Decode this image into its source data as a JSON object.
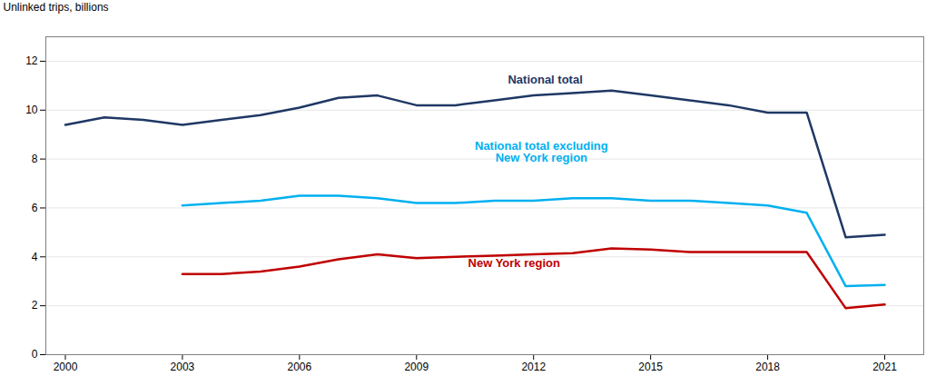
{
  "chart_data": {
    "type": "line",
    "ylabel": "Unlinked trips, billions",
    "x": [
      2000,
      2001,
      2002,
      2003,
      2004,
      2005,
      2006,
      2007,
      2008,
      2009,
      2010,
      2011,
      2012,
      2013,
      2014,
      2015,
      2016,
      2017,
      2018,
      2019,
      2020,
      2021
    ],
    "series": [
      {
        "name": "National total",
        "color": "#1f3864",
        "values": [
          9.4,
          9.7,
          9.6,
          9.4,
          9.6,
          9.8,
          10.1,
          10.5,
          10.6,
          10.2,
          10.2,
          10.4,
          10.6,
          10.7,
          10.8,
          10.6,
          10.4,
          10.2,
          9.9,
          9.9,
          4.8,
          4.9
        ],
        "annotation_xy": [
          2012.3,
          11.1
        ]
      },
      {
        "name": "National total excluding\nNew York region",
        "color": "#00b0f0",
        "values": [
          null,
          null,
          null,
          6.1,
          6.2,
          6.3,
          6.5,
          6.5,
          6.4,
          6.2,
          6.2,
          6.3,
          6.3,
          6.4,
          6.4,
          6.3,
          6.3,
          6.2,
          6.1,
          5.8,
          2.8,
          2.85
        ],
        "annotation_xy": [
          2012.2,
          7.9
        ]
      },
      {
        "name": "New York region",
        "color": "#c00000",
        "values": [
          null,
          null,
          null,
          3.3,
          3.3,
          3.4,
          3.6,
          3.9,
          4.1,
          3.95,
          4.0,
          4.05,
          4.1,
          4.15,
          4.35,
          4.3,
          4.2,
          4.2,
          4.2,
          4.2,
          1.9,
          2.05
        ],
        "annotation_xy": [
          2011.5,
          3.6
        ]
      }
    ],
    "xlim": [
      1999.5,
      2022.0
    ],
    "xticks": [
      2000,
      2003,
      2006,
      2009,
      2012,
      2015,
      2018,
      2021
    ],
    "ylim": [
      0,
      13
    ],
    "yticks": [
      0,
      2,
      4,
      6,
      8,
      10,
      12
    ],
    "grid": true
  }
}
